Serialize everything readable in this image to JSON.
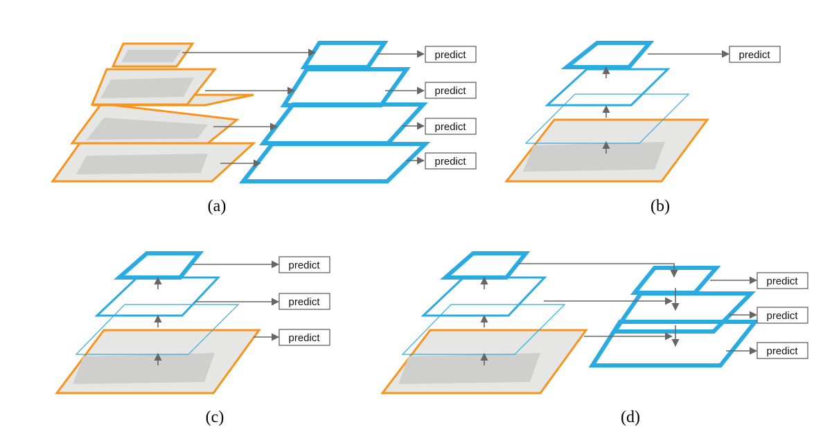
{
  "panels": [
    {
      "id": "a",
      "caption": "(a)",
      "predict_labels": [
        "predict",
        "predict",
        "predict",
        "predict"
      ]
    },
    {
      "id": "b",
      "caption": "(b)",
      "predict_labels": [
        "predict"
      ]
    },
    {
      "id": "c",
      "caption": "(c)",
      "predict_labels": [
        "predict",
        "predict",
        "predict"
      ]
    },
    {
      "id": "d",
      "caption": "(d)",
      "predict_labels": [
        "predict",
        "predict",
        "predict"
      ]
    }
  ],
  "colors": {
    "image_layer_border": "#f7941d",
    "feature_map_border": "#29abe2",
    "arrow": "#666666",
    "image_fill": "#e6e6e4"
  }
}
